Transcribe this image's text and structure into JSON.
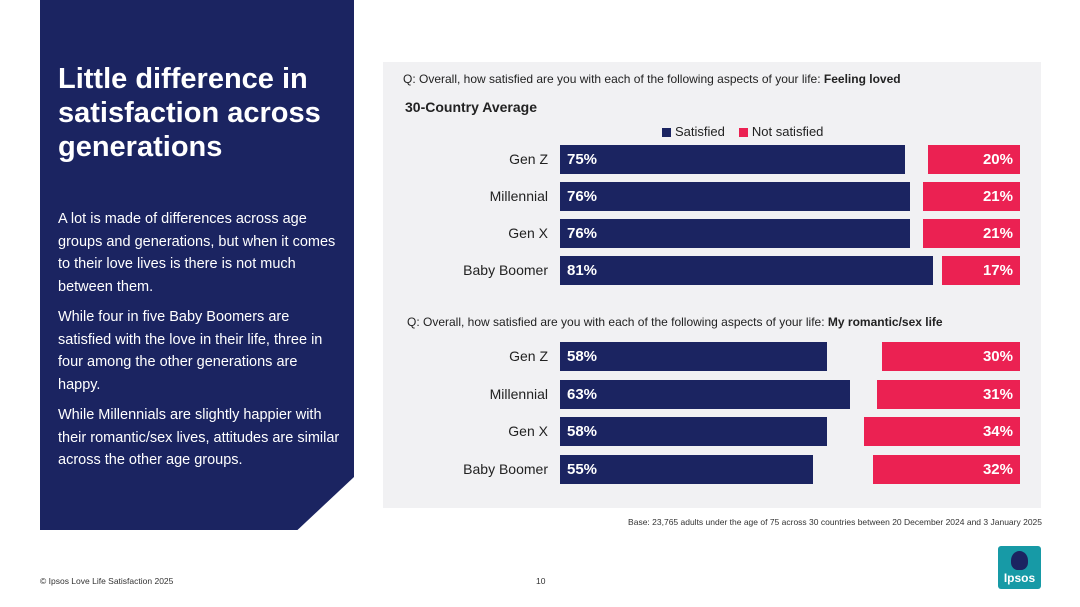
{
  "left": {
    "title": "Little difference in satisfaction across generations",
    "paragraphs": [
      "A lot is made of differences across age groups and generations, but when it comes to their love lives is there is not much between them.",
      "While four in five Baby Boomers are satisfied with the love in their life, three in four among the other generations are happy.",
      "While Millennials are slightly happier with their romantic/sex lives, attitudes are similar across the other age groups."
    ]
  },
  "colors": {
    "satisfied": "#1b2461",
    "not_satisfied": "#eb2152",
    "panel": "#f1f1f3"
  },
  "chart_data": [
    {
      "type": "bar",
      "question_prefix": "Q: Overall, how satisfied are you with each of the following aspects of your life:",
      "question_topic": "Feeling loved",
      "subtitle": "30-Country Average",
      "legend": [
        "Satisfied",
        "Not satisfied"
      ],
      "categories": [
        "Gen Z",
        "Millennial",
        "Gen X",
        "Baby Boomer"
      ],
      "series": [
        {
          "name": "Satisfied",
          "values": [
            75,
            76,
            76,
            81
          ],
          "labels": [
            "75%",
            "76%",
            "76%",
            "81%"
          ]
        },
        {
          "name": "Not satisfied",
          "values": [
            20,
            21,
            21,
            17
          ],
          "labels": [
            "20%",
            "21%",
            "21%",
            "17%"
          ]
        }
      ]
    },
    {
      "type": "bar",
      "question_prefix": "Q: Overall, how satisfied are you with each of the following aspects of your life:",
      "question_topic": "My romantic/sex life",
      "categories": [
        "Gen Z",
        "Millennial",
        "Gen X",
        "Baby Boomer"
      ],
      "series": [
        {
          "name": "Satisfied",
          "values": [
            58,
            63,
            58,
            55
          ],
          "labels": [
            "58%",
            "63%",
            "58%",
            "55%"
          ]
        },
        {
          "name": "Not satisfied",
          "values": [
            30,
            31,
            34,
            32
          ],
          "labels": [
            "30%",
            "31%",
            "34%",
            "32%"
          ]
        }
      ]
    }
  ],
  "base_note": "Base: 23,765 adults under the age of 75 across 30 countries between 20 December 2024 and 3 January 2025",
  "footer": {
    "copyright": "© Ipsos Love Life Satisfaction 2025",
    "page": "10"
  },
  "logo": {
    "text": "Ipsos"
  }
}
